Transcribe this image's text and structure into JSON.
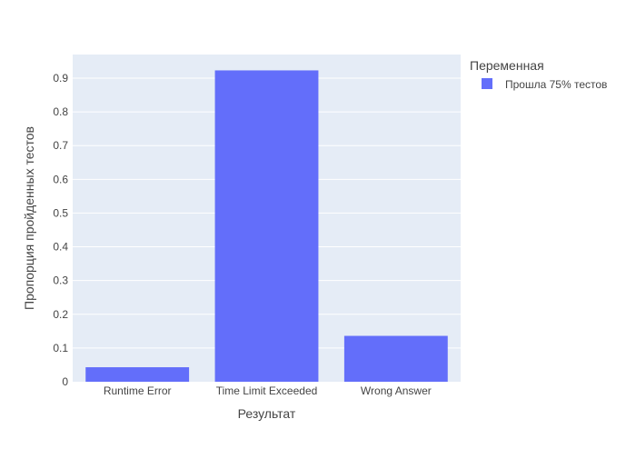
{
  "chart_data": {
    "type": "bar",
    "categories": [
      "Runtime Error",
      "Time Limit Exceeded",
      "Wrong Answer"
    ],
    "series": [
      {
        "name": "Прошла 75% тестов",
        "values": [
          0.043,
          0.923,
          0.136
        ],
        "color": "#636efa"
      }
    ],
    "xlabel": "Результат",
    "ylabel": "Пропорция пройденных тестов",
    "ylim": [
      0,
      0.97
    ],
    "yticks": [
      0,
      0.1,
      0.2,
      0.3,
      0.4,
      0.5,
      0.6,
      0.7,
      0.8,
      0.9
    ],
    "ytick_labels": [
      "0",
      "0.1",
      "0.2",
      "0.3",
      "0.4",
      "0.5",
      "0.6",
      "0.7",
      "0.8",
      "0.9"
    ],
    "grid": true,
    "legend": {
      "title": "Переменная",
      "position": "top-right"
    },
    "colors": {
      "plot_background": "#e5ecf6",
      "grid": "#ffffff",
      "text": "#444444"
    }
  }
}
